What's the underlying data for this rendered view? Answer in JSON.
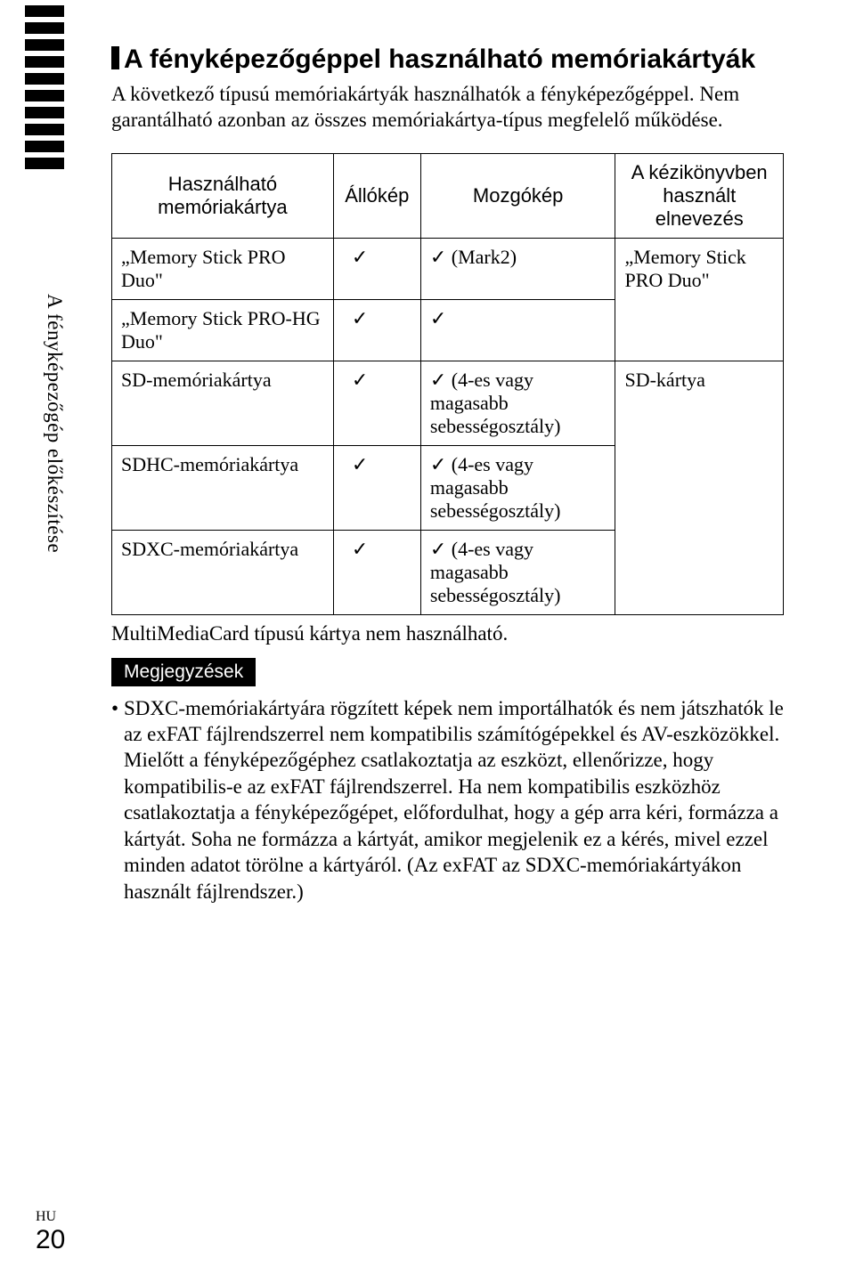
{
  "leftBarCount": 10,
  "tabLabel": "A fényképezőgép előkészítése",
  "footer": {
    "lang": "HU",
    "page": "20"
  },
  "heading": "A fényképezőgéppel használható memóriakártyák",
  "lead": "A következő típusú memóriakártyák használhatók a fényképezőgéppel. Nem garantálható azonban az összes memóriakártya-típus megfelelő működése.",
  "table": {
    "headers": {
      "card": "Használható memóriakártya",
      "still": "Állókép",
      "movie": "Mozgókép",
      "name": "A kézikönyvben használt elnevezés"
    },
    "check": "✓",
    "rows": [
      {
        "card": "„Memory Stick PRO Duo\"",
        "still": "✓",
        "movie": "✓ (Mark2)",
        "name": "„Memory Stick PRO Duo\"",
        "nameRowspan": 2
      },
      {
        "card": "„Memory Stick PRO-HG Duo\"",
        "still": "✓",
        "movie": "✓"
      },
      {
        "card": "SD-memóriakártya",
        "still": "✓",
        "movie": "✓ (4-es vagy magasabb sebességosztály)",
        "name": "SD-kártya",
        "nameRowspan": 3
      },
      {
        "card": "SDHC-memóriakártya",
        "still": "✓",
        "movie": "✓ (4-es vagy magasabb sebességosztály)"
      },
      {
        "card": "SDXC-memóriakártya",
        "still": "✓",
        "movie": "✓ (4-es vagy magasabb sebességosztály)"
      }
    ]
  },
  "afterTable": "MultiMediaCard típusú kártya nem használható.",
  "notesLabel": "Megjegyzések",
  "note": "SDXC-memóriakártyára rögzített képek nem importálhatók és nem játszhatók le az exFAT fájlrendszerrel nem kompatibilis számítógépekkel és AV-eszközökkel. Mielőtt a fényképezőgéphez csatlakoztatja az eszközt, ellenőrizze, hogy kompatibilis-e az exFAT fájlrendszerrel. Ha nem kompatibilis eszközhöz csatlakoztatja a fényképezőgépet, előfordulhat, hogy a gép arra kéri, formázza a kártyát. Soha ne formázza a kártyát, amikor megjelenik ez a kérés, mivel ezzel minden adatot törölne a kártyáról. (Az exFAT az SDXC-memóriakártyákon használt fájlrendszer.)"
}
